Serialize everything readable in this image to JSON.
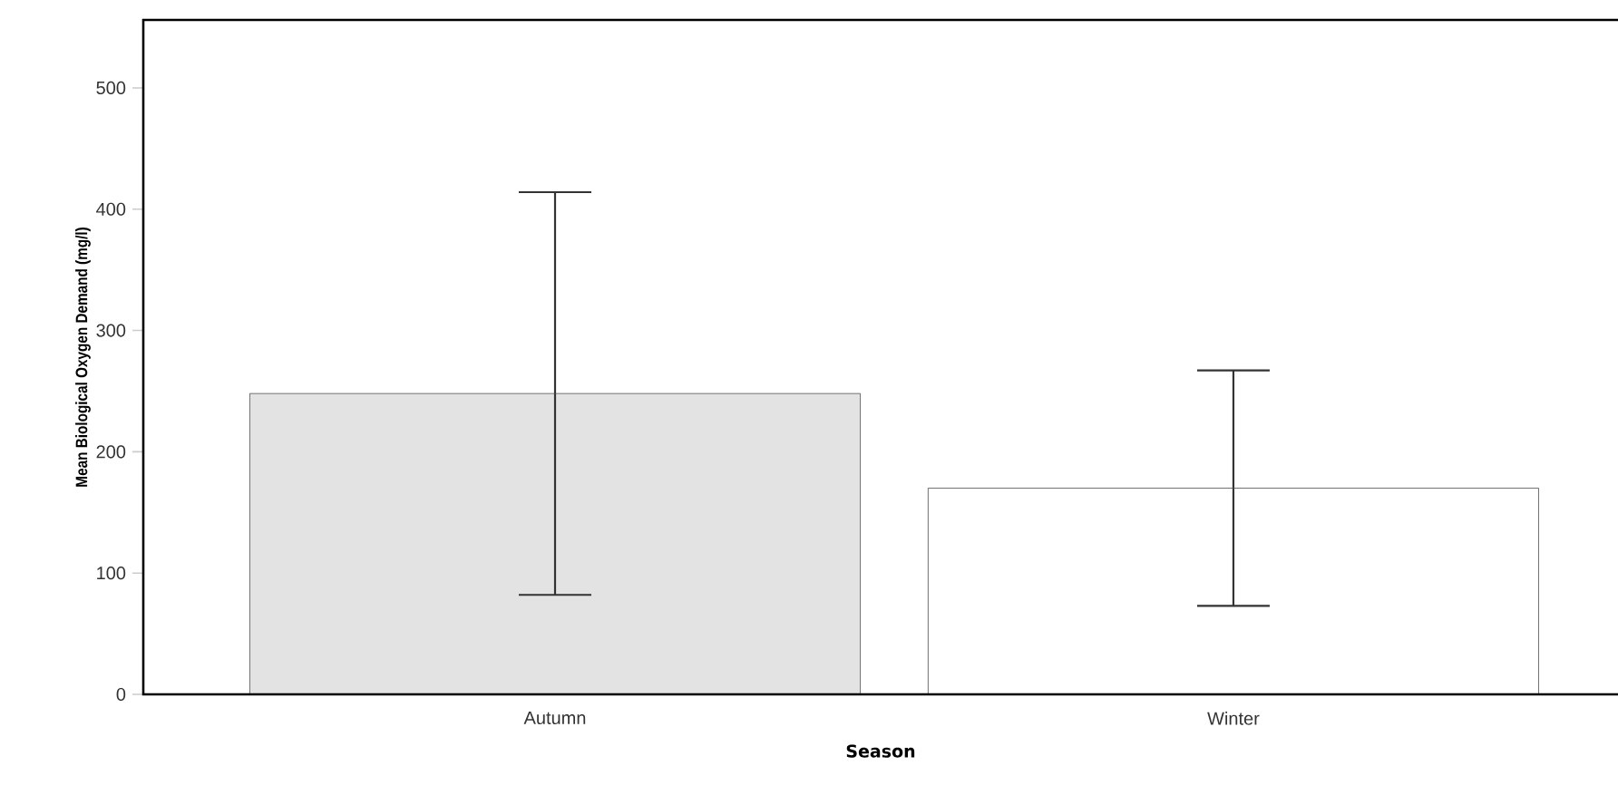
{
  "chart_data": {
    "type": "bar",
    "xlabel": "Season",
    "ylabel": "Mean Biological Oxygen Demand (mg/l)",
    "categories": [
      "Autumn",
      "Winter"
    ],
    "values": [
      248,
      170
    ],
    "errors": [
      166,
      97
    ],
    "colors": [
      "#e3e3e3",
      "#ffffff"
    ],
    "ylim": [
      0,
      556
    ],
    "yticks": [
      0,
      100,
      200,
      300,
      400,
      500
    ],
    "grid": false
  }
}
